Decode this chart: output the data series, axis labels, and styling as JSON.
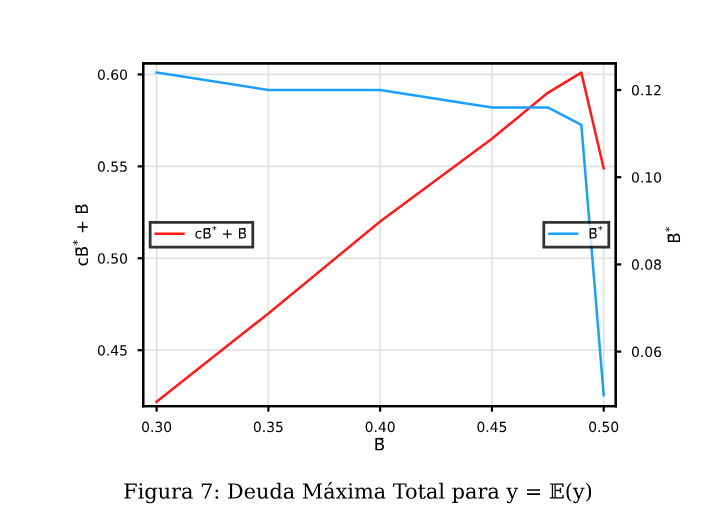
{
  "chart_data": {
    "type": "line",
    "xlabel": "B̄",
    "ylabel": "cB̄$^{*}$ + B̄",
    "y2label": "B̄$^{*}$",
    "annotations": [
      "Figura 7: Deuda Máxima Total para y = 𝔼(y)"
    ],
    "x": [
      0.3,
      0.35,
      0.4,
      0.45,
      0.475,
      0.49,
      0.5
    ],
    "series": [
      {
        "name": "cB̄$^{*}$ + B̄",
        "color": "#ff1a1a",
        "values": [
          0.422,
          0.47,
          0.52,
          0.565,
          0.59,
          0.601,
          0.549
        ]
      },
      {
        "name": "B̄$^{*}$",
        "color": "#1a9fff",
        "axis": "y2",
        "values": [
          0.124,
          0.12,
          0.12,
          0.116,
          0.116,
          0.112,
          0.05
        ]
      }
    ],
    "xlim": [
      0.294,
      0.5054
    ],
    "xticks": [
      {
        "value": 0.3,
        "label": "0.30"
      },
      {
        "value": 0.35,
        "label": "0.35"
      },
      {
        "value": 0.4,
        "label": "0.40"
      },
      {
        "value": 0.45,
        "label": "0.45"
      },
      {
        "value": 0.5,
        "label": "0.50"
      }
    ],
    "ylim": [
      0.4196,
      0.606
    ],
    "yticks": [
      {
        "value": 0.45,
        "label": "0.45"
      },
      {
        "value": 0.5,
        "label": "0.50"
      },
      {
        "value": 0.55,
        "label": "0.55"
      },
      {
        "value": 0.6,
        "label": "0.60"
      }
    ],
    "y2lim": [
      0.0475,
      0.1261
    ],
    "y2ticks": [
      {
        "value": 0.06,
        "label": "0.06"
      },
      {
        "value": 0.08,
        "label": "0.08"
      },
      {
        "value": 0.1,
        "label": "0.10"
      },
      {
        "value": 0.12,
        "label": "0.12"
      }
    ],
    "grid": true,
    "legend": "left"
  }
}
